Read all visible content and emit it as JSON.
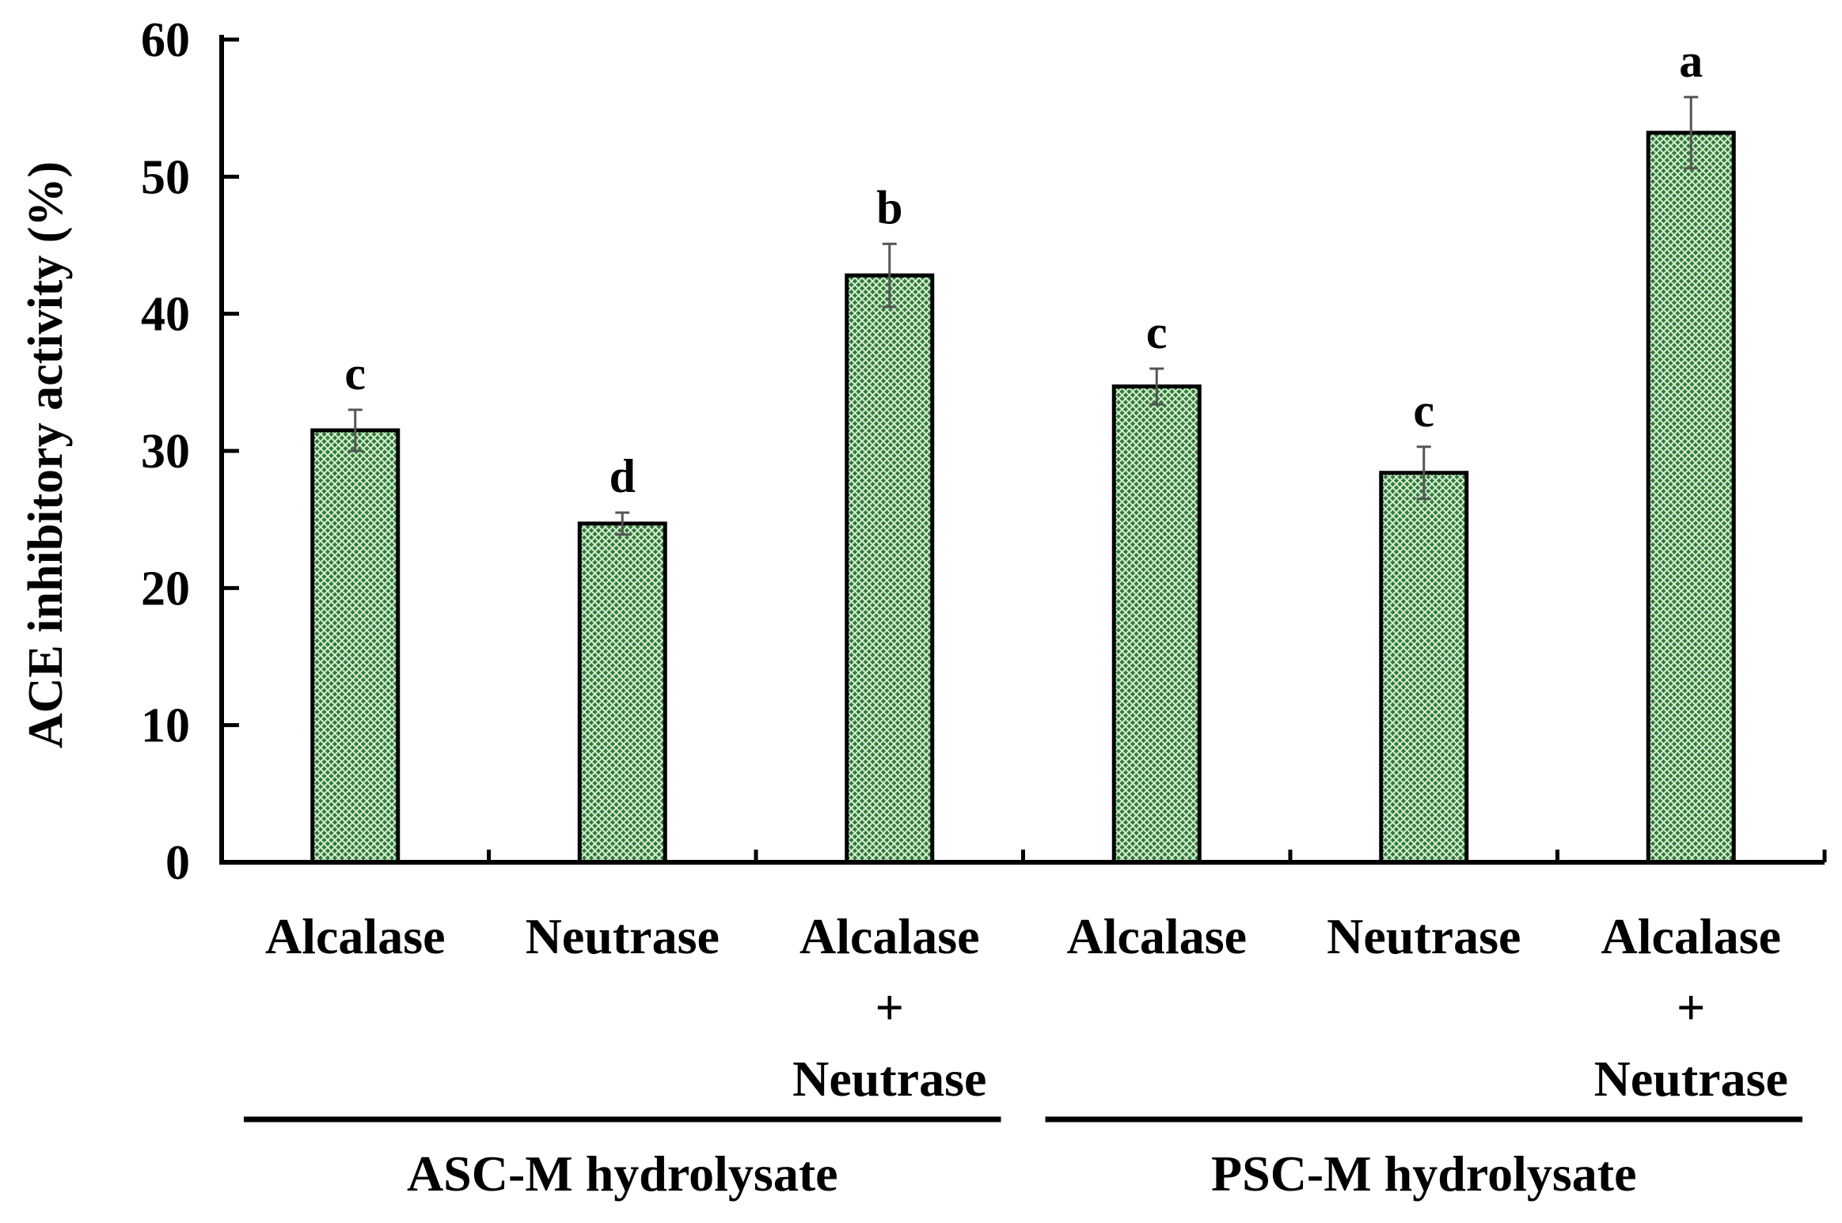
{
  "chart_data": {
    "type": "bar",
    "title": "",
    "ylabel": "ACE inhibitory activity (%)",
    "xlabel": "",
    "ylim": [
      0,
      60
    ],
    "yticks": [
      0,
      10,
      20,
      30,
      40,
      50,
      60
    ],
    "grid": false,
    "bar_color": "#2e7d32",
    "categories": [
      [
        "Alcalase"
      ],
      [
        "Neutrase"
      ],
      [
        "Alcalase",
        "+",
        "Neutrase"
      ],
      [
        "Alcalase"
      ],
      [
        "Neutrase"
      ],
      [
        "Alcalase",
        "+",
        "Neutrase"
      ]
    ],
    "values": [
      31.5,
      24.7,
      42.8,
      34.7,
      28.4,
      53.2
    ],
    "errors": [
      1.5,
      0.8,
      2.3,
      1.3,
      1.9,
      2.6
    ],
    "significance_letters": [
      "c",
      "d",
      "b",
      "c",
      "c",
      "a"
    ],
    "groups": [
      {
        "label": "ASC-M hydrolysate",
        "start": 0,
        "end": 2
      },
      {
        "label": "PSC-M hydrolysate",
        "start": 3,
        "end": 5
      }
    ]
  }
}
